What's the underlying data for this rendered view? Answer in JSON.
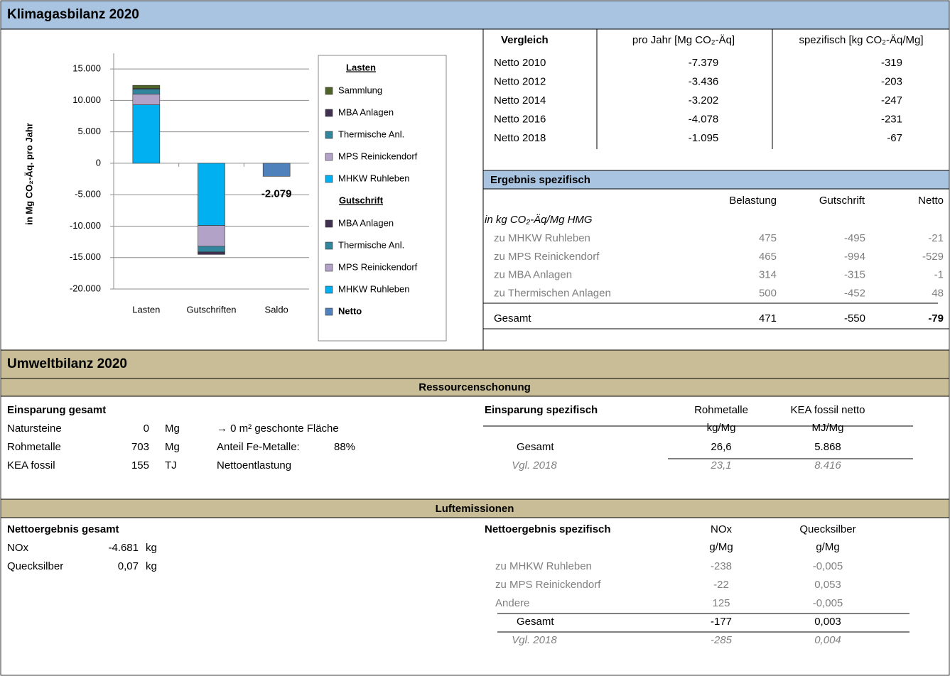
{
  "klima": {
    "title": "Klimagasbilanz 2020",
    "vergleich": {
      "header": [
        "Vergleich",
        "pro Jahr [Mg CO₂-Äq]",
        "spezifisch [kg CO₂-Äq/Mg]"
      ],
      "rows": [
        [
          "Netto 2010",
          "-7.379",
          "-319"
        ],
        [
          "Netto 2012",
          "-3.436",
          "-203"
        ],
        [
          "Netto 2014",
          "-3.202",
          "-247"
        ],
        [
          "Netto 2016",
          "-4.078",
          "-231"
        ],
        [
          "Netto 2018",
          "-1.095",
          "-67"
        ]
      ]
    },
    "ergebnis": {
      "title": "Ergebnis spezifisch",
      "header": [
        "Belastung",
        "Gutschrift",
        "Netto"
      ],
      "unit": "in kg CO₂-Äq/Mg HMG",
      "rows": [
        [
          "zu MHKW Ruhleben",
          "475",
          "-495",
          "-21"
        ],
        [
          "zu MPS Reinickendorf",
          "465",
          "-994",
          "-529"
        ],
        [
          "zu MBA Anlagen",
          "314",
          "-315",
          "-1"
        ],
        [
          "zu Thermischen Anlagen",
          "500",
          "-452",
          "48"
        ]
      ],
      "total": [
        "Gesamt",
        "471",
        "-550",
        "-79"
      ]
    }
  },
  "chart_data": {
    "type": "bar",
    "stacked": true,
    "y_label": "in Mg CO₂-Äq. pro Jahr",
    "categories": [
      "Lasten",
      "Gutschriften",
      "Saldo"
    ],
    "ylim": [
      -20000,
      17500
    ],
    "yticks": [
      {
        "value": 15000,
        "label": "15.000"
      },
      {
        "value": 10000,
        "label": "10.000"
      },
      {
        "value": 5000,
        "label": "5.000"
      },
      0,
      {
        "value": -5000,
        "label": "-5.000"
      },
      {
        "value": -10000,
        "label": "-10.000"
      },
      {
        "value": -15000,
        "label": "-15.000"
      },
      {
        "value": -20000,
        "label": "-20.000"
      }
    ],
    "grid": true,
    "groups": [
      {
        "title": "Lasten",
        "series": [
          {
            "name": "Sammlung",
            "color": "#4f6228",
            "values": [
              500,
              null,
              null
            ]
          },
          {
            "name": "MBA Anlagen",
            "color": "#403151",
            "values": [
              100,
              null,
              null
            ]
          },
          {
            "name": "Thermische Anl.",
            "color": "#31859c",
            "values": [
              800,
              null,
              null
            ]
          },
          {
            "name": "MPS Reinickendorf",
            "color": "#b3a2c7",
            "values": [
              1700,
              null,
              null
            ]
          },
          {
            "name": "MHKW Ruhleben",
            "color": "#00b0f0",
            "values": [
              9300,
              null,
              null
            ]
          }
        ]
      },
      {
        "title": "Gutschrift",
        "series": [
          {
            "name": "MBA Anlagen",
            "color": "#403151",
            "values": [
              null,
              -400,
              null
            ]
          },
          {
            "name": "Thermische Anl.",
            "color": "#31859c",
            "values": [
              null,
              -900,
              null
            ]
          },
          {
            "name": "MPS Reinickendorf",
            "color": "#b3a2c7",
            "values": [
              null,
              -3300,
              null
            ]
          },
          {
            "name": "MHKW Ruhleben",
            "color": "#00b0f0",
            "values": [
              null,
              -9900,
              null
            ]
          }
        ]
      },
      {
        "series": [
          {
            "name": "Netto",
            "color": "#4f81bd",
            "values": [
              null,
              null,
              -2079
            ],
            "value_labels": [
              null,
              null,
              "-2.079"
            ]
          }
        ]
      }
    ]
  },
  "umwelt": {
    "title": "Umweltbilanz 2020",
    "ressourcen": {
      "title": "Ressourcenschonung",
      "left_title": "Einsparung gesamt",
      "left_rows": [
        [
          "Natursteine",
          "0",
          "Mg",
          "→ 0 m² geschonte Fläche"
        ],
        [
          "Rohmetalle",
          "703",
          "Mg",
          "Anteil Fe-Metalle:",
          "88%"
        ],
        [
          "KEA fossil",
          "155",
          "TJ",
          "Nettoentlastung"
        ]
      ],
      "right_header": [
        "Einsparung spezifisch",
        "Rohmetalle",
        "KEA fossil netto"
      ],
      "right_units": [
        "kg/Mg",
        "MJ/Mg"
      ],
      "right_rows": [
        [
          "Gesamt",
          "26,6",
          "5.868"
        ],
        [
          "Vgl. 2018",
          "23,1",
          "8.416"
        ]
      ]
    },
    "luft": {
      "title": "Luftemissionen",
      "left_title": "Nettoergebnis gesamt",
      "left_rows": [
        [
          "NOx",
          "-4.681",
          "kg"
        ],
        [
          "Quecksilber",
          "0,07",
          "kg"
        ]
      ],
      "right_header": [
        "Nettoergebnis spezifisch",
        "NOx",
        "Quecksilber"
      ],
      "right_units": [
        "g/Mg",
        "g/Mg"
      ],
      "right_rows": [
        [
          "zu MHKW Ruhleben",
          "-238",
          "-0,005"
        ],
        [
          "zu MPS Reinickendorf",
          "-22",
          "0,053"
        ],
        [
          "Andere",
          "125",
          "-0,005"
        ],
        [
          "Gesamt",
          "-177",
          "0,003"
        ],
        [
          "Vgl. 2018",
          "-285",
          "0,004"
        ]
      ]
    }
  }
}
